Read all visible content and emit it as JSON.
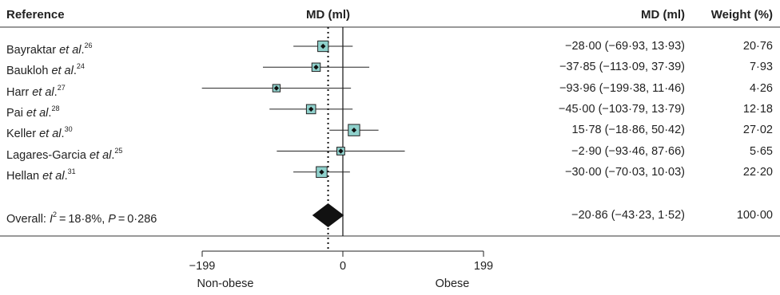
{
  "chart_data": {
    "type": "forest",
    "headers": {
      "reference": "Reference",
      "plot": "MD (ml)",
      "effect": "MD (ml)",
      "weight": "Weight (%)"
    },
    "studies": [
      {
        "name": "Bayraktar ",
        "etal": "et al",
        "ref": "26",
        "md": -28.0,
        "lo": -69.93,
        "hi": 13.93,
        "ci_text": "−28·00 (−69·93, 13·93)",
        "weight": 20.76,
        "weight_text": "20·76"
      },
      {
        "name": "Baukloh ",
        "etal": "et al",
        "ref": "24",
        "md": -37.85,
        "lo": -113.09,
        "hi": 37.39,
        "ci_text": "−37·85 (−113·09, 37·39)",
        "weight": 7.93,
        "weight_text": "7·93"
      },
      {
        "name": "Harr ",
        "etal": "et al",
        "ref": "27",
        "md": -93.96,
        "lo": -199.38,
        "hi": 11.46,
        "ci_text": "−93·96 (−199·38, 11·46)",
        "weight": 4.26,
        "weight_text": "4·26"
      },
      {
        "name": "Pai ",
        "etal": "et al",
        "ref": "28",
        "md": -45.0,
        "lo": -103.79,
        "hi": 13.79,
        "ci_text": "−45·00 (−103·79, 13·79)",
        "weight": 12.18,
        "weight_text": "12·18"
      },
      {
        "name": "Keller ",
        "etal": "et al",
        "ref": "30",
        "md": 15.78,
        "lo": -18.86,
        "hi": 50.42,
        "ci_text": "15·78 (−18·86, 50·42)",
        "weight": 27.02,
        "weight_text": "27·02"
      },
      {
        "name": "Lagares-Garcia ",
        "etal": "et al",
        "ref": "25",
        "md": -2.9,
        "lo": -93.46,
        "hi": 87.66,
        "ci_text": "−2·90 (−93·46, 87·66)",
        "weight": 5.65,
        "weight_text": "5·65"
      },
      {
        "name": "Hellan ",
        "etal": "et al",
        "ref": "31",
        "md": -30.0,
        "lo": -70.03,
        "hi": 10.03,
        "ci_text": "−30·00 (−70·03, 10·03)",
        "weight": 22.2,
        "weight_text": "22·20"
      }
    ],
    "overall": {
      "label_prefix": "Overall: ",
      "i2_symbol": "I",
      "i2_rest": " = 18·8%, ",
      "p_symbol": "P",
      "p_rest": " = 0·286",
      "md": -20.86,
      "lo": -43.23,
      "hi": 1.52,
      "ci_text": "−20·86 (−43·23, 1·52)",
      "weight": 100.0,
      "weight_text": "100·00"
    },
    "x_ticks": [
      -199,
      0,
      199
    ],
    "x_tick_labels": [
      "−199",
      "0",
      "199"
    ],
    "xlim": [
      -199,
      199
    ],
    "direction_labels": {
      "left": "Non-obese",
      "right": "Obese"
    }
  }
}
